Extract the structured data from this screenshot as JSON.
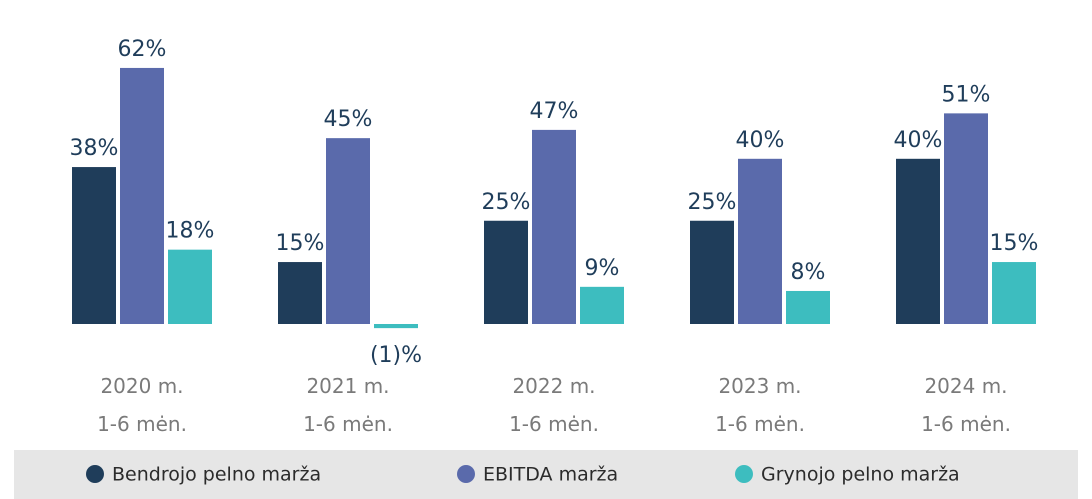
{
  "chart_data": {
    "type": "bar",
    "categories": [
      "2020 m.\n1-6 mėn.",
      "2021 m.\n1-6 mėn.",
      "2022 m.\n1-6 mėn.",
      "2023 m.\n1-6 mėn.",
      "2024 m.\n1-6 mėn."
    ],
    "series": [
      {
        "name": "Bendrojo pelno marža",
        "color": "#1f3d5a",
        "values": [
          38,
          15,
          25,
          25,
          40
        ],
        "value_labels": [
          "38%",
          "15%",
          "25%",
          "25%",
          "40%"
        ]
      },
      {
        "name": "EBITDA marža",
        "color": "#5a6aab",
        "values": [
          62,
          45,
          47,
          40,
          51
        ],
        "value_labels": [
          "62%",
          "45%",
          "47%",
          "40%",
          "51%"
        ]
      },
      {
        "name": "Grynojo pelno marža",
        "color": "#3dbdbf",
        "values": [
          18,
          -1,
          9,
          8,
          15
        ],
        "value_labels": [
          "18%",
          "(1)%",
          "9%",
          "8%",
          "15%"
        ]
      }
    ]
  }
}
